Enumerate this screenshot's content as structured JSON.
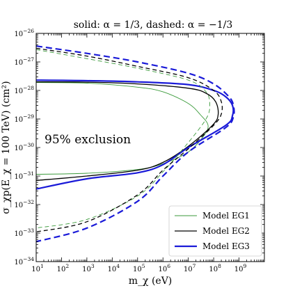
{
  "chart_data": {
    "type": "line",
    "title": "solid: α = 1/3, dashed: α = −1/3",
    "xlabel": "m_χ (eV)",
    "ylabel": "σ_χp(E_χ = 100 TeV) (cm²)",
    "xscale": "log",
    "yscale": "log",
    "xlim": [
      10.0,
      10000000000.0
    ],
    "ylim": [
      1e-34,
      1e-26
    ],
    "x_ticks": [
      {
        "value": 10.0,
        "base": "10",
        "exp": "1"
      },
      {
        "value": 100.0,
        "base": "10",
        "exp": "2"
      },
      {
        "value": 1000.0,
        "base": "10",
        "exp": "3"
      },
      {
        "value": 10000.0,
        "base": "10",
        "exp": "4"
      },
      {
        "value": 100000.0,
        "base": "10",
        "exp": "5"
      },
      {
        "value": 1000000.0,
        "base": "10",
        "exp": "6"
      },
      {
        "value": 10000000.0,
        "base": "10",
        "exp": "7"
      },
      {
        "value": 100000000.0,
        "base": "10",
        "exp": "8"
      },
      {
        "value": 1000000000.0,
        "base": "10",
        "exp": "9"
      }
    ],
    "y_ticks": [
      {
        "value": 1e-26,
        "base": "10",
        "exp": "−26"
      },
      {
        "value": 1e-27,
        "base": "10",
        "exp": "−27"
      },
      {
        "value": 1e-28,
        "base": "10",
        "exp": "−28"
      },
      {
        "value": 1e-29,
        "base": "10",
        "exp": "−29"
      },
      {
        "value": 1e-30,
        "base": "10",
        "exp": "−30"
      },
      {
        "value": 1e-31,
        "base": "10",
        "exp": "−31"
      },
      {
        "value": 1e-32,
        "base": "10",
        "exp": "−32"
      },
      {
        "value": 1e-33,
        "base": "10",
        "exp": "−33"
      },
      {
        "value": 1e-34,
        "base": "10",
        "exp": "−34"
      }
    ],
    "annotation": "95% exclusion",
    "legend_position": "bottom-right",
    "grid": false,
    "series": [
      {
        "name": "Model EG1",
        "color": "#3a9a3a",
        "style": "solid",
        "width": 0.9,
        "points": [
          [
            10,
            1.9e-28
          ],
          [
            1000.0,
            1.8e-28
          ],
          [
            100000.0,
            1.3e-28
          ],
          [
            1000000.0,
            9e-29
          ],
          [
            10000000.0,
            3.5e-29
          ],
          [
            30000000.0,
            1.4e-29
          ],
          [
            60000000.0,
            6e-30
          ],
          [
            40000000.0,
            2.5e-30
          ],
          [
            10000000.0,
            7e-31
          ],
          [
            1000000.0,
            2.7e-31
          ],
          [
            100000.0,
            1.7e-31
          ],
          [
            1000.0,
            1.25e-31
          ],
          [
            10,
            1.15e-31
          ]
        ]
      },
      {
        "name": "Model EG2",
        "color": "#000000",
        "style": "solid",
        "width": 1.3,
        "points": [
          [
            10,
            2e-28
          ],
          [
            1000.0,
            1.95e-28
          ],
          [
            100000.0,
            1.7e-28
          ],
          [
            10000000.0,
            1.2e-28
          ],
          [
            50000000.0,
            8e-29
          ],
          [
            120000000.0,
            4e-29
          ],
          [
            150000000.0,
            1.4e-29
          ],
          [
            90000000.0,
            6e-30
          ],
          [
            10000000.0,
            1.1e-30
          ],
          [
            1000000.0,
            3e-31
          ],
          [
            100000.0,
            1.6e-31
          ],
          [
            1000.0,
            1e-31
          ],
          [
            10,
            7e-32
          ]
        ]
      },
      {
        "name": "Model EG3",
        "color": "#1a1ad8",
        "style": "solid",
        "width": 2.2,
        "points": [
          [
            10,
            2.3e-28
          ],
          [
            1000.0,
            2.2e-28
          ],
          [
            100000.0,
            2e-28
          ],
          [
            10000000.0,
            1.6e-28
          ],
          [
            100000000.0,
            1e-28
          ],
          [
            300000000.0,
            6e-29
          ],
          [
            550000000.0,
            3e-29
          ],
          [
            550000000.0,
            1.3e-29
          ],
          [
            300000000.0,
            6e-30
          ],
          [
            10000000.0,
            1e-30
          ],
          [
            1000000.0,
            2.5e-31
          ],
          [
            100000.0,
            1.3e-31
          ],
          [
            1000.0,
            8e-32
          ],
          [
            10,
            3.5e-32
          ]
        ]
      },
      {
        "name": "",
        "color": "#3a9a3a",
        "style": "dashed",
        "width": 0.9,
        "points": [
          [
            10,
            2.7e-27
          ],
          [
            1000.0,
            1.3e-27
          ],
          [
            100000.0,
            6e-28
          ],
          [
            10000000.0,
            2.3e-28
          ],
          [
            50000000.0,
            9e-29
          ],
          [
            70000000.0,
            3e-29
          ],
          [
            50000000.0,
            1e-29
          ],
          [
            10000000.0,
            1.5e-30
          ],
          [
            1000000.0,
            1.4e-31
          ],
          [
            100000.0,
            2e-32
          ],
          [
            1000.0,
            3e-33
          ],
          [
            10,
            1.5e-33
          ]
        ]
      },
      {
        "name": "",
        "color": "#000000",
        "style": "dashed",
        "width": 1.3,
        "points": [
          [
            10,
            3e-27
          ],
          [
            1000.0,
            1.6e-27
          ],
          [
            100000.0,
            7e-28
          ],
          [
            10000000.0,
            2.8e-28
          ],
          [
            100000000.0,
            1e-28
          ],
          [
            200000000.0,
            4e-29
          ],
          [
            200000000.0,
            1.5e-29
          ],
          [
            100000000.0,
            6e-30
          ],
          [
            10000000.0,
            9e-31
          ],
          [
            1000000.0,
            1.6e-31
          ],
          [
            100000.0,
            2.2e-32
          ],
          [
            1000.0,
            2.5e-33
          ],
          [
            10,
            1.1e-33
          ]
        ]
      },
      {
        "name": "",
        "color": "#1a1ad8",
        "style": "dashed",
        "width": 2.2,
        "points": [
          [
            10,
            3.6e-27
          ],
          [
            1000.0,
            2e-27
          ],
          [
            100000.0,
            1e-27
          ],
          [
            10000000.0,
            4e-28
          ],
          [
            100000000.0,
            1.7e-28
          ],
          [
            400000000.0,
            6e-29
          ],
          [
            600000000.0,
            3e-29
          ],
          [
            600000000.0,
            1.2e-29
          ],
          [
            300000000.0,
            5e-30
          ],
          [
            10000000.0,
            7e-31
          ],
          [
            1000000.0,
            1e-31
          ],
          [
            100000.0,
            1.3e-32
          ],
          [
            1000.0,
            1.5e-33
          ],
          [
            10,
            5e-34
          ]
        ]
      }
    ]
  }
}
